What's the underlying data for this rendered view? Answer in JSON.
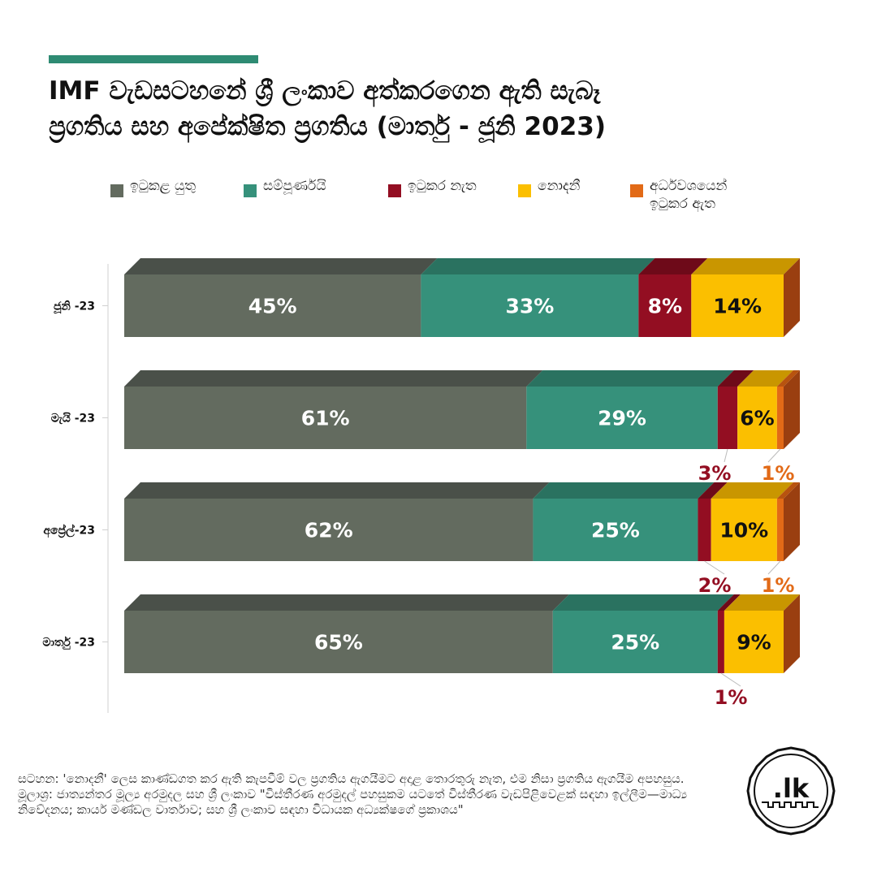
{
  "title_line1": "IMF වැඩසටහනේ ශ්‍රී ලංකාව අත්කරගෙන ඇති සැබෑ",
  "title_line2": "ප්‍රගතිය සහ අපේක්ෂිත ප්‍රගතිය (මාර්තු - ජූනි 2023)",
  "legend": [
    {
      "label": "ඉටුකළ යුතු",
      "color": "#636b5f"
    },
    {
      "label": "සම්පූර්ණයි",
      "color": "#36917b"
    },
    {
      "label": "ඉටුකර නැත",
      "color": "#930e22"
    },
    {
      "label": "නොදනී",
      "color": "#fbbf00"
    },
    {
      "label": "අර්ධවශයෙන් ඉටුකර ඇත",
      "color": "#e26a17"
    }
  ],
  "chart_data": {
    "type": "bar",
    "orientation": "horizontal",
    "stacked": true,
    "categories": [
      "ජූනි -23",
      "මැයි -23",
      "අප්‍රේල්-23",
      "මාර්තු -23"
    ],
    "series": [
      {
        "name": "ඉටුකළ යුතු",
        "values": [
          45,
          61,
          62,
          65
        ],
        "labels": [
          "45%",
          "61%",
          "62%",
          "65%"
        ]
      },
      {
        "name": "සම්පූර්ණයි",
        "values": [
          33,
          29,
          25,
          25
        ],
        "labels": [
          "33%",
          "29%",
          "25%",
          "25%"
        ]
      },
      {
        "name": "ඉටුකර නැත",
        "values": [
          8,
          3,
          2,
          1
        ],
        "labels": [
          "8%",
          "3%",
          "2%",
          "1%"
        ]
      },
      {
        "name": "නොදනී",
        "values": [
          14,
          6,
          10,
          9
        ],
        "labels": [
          "14%",
          "6%",
          "10%",
          "9%"
        ]
      },
      {
        "name": "අර්ධවශයෙන් ඉටුකර ඇත",
        "values": [
          0,
          1,
          1,
          0
        ],
        "labels": [
          "",
          "1%",
          "1%",
          ""
        ]
      }
    ],
    "xlim": [
      0,
      100
    ],
    "legend_position": "top"
  },
  "footnote": {
    "line1": "සටහන: 'නොදනී' ලෙස කාණ්ඩගත කර ඇති කැපවීම් වල ප්‍රගතිය ඇගයීමට අදාළ තොරතුරු නැත, එම නිසා ප්‍රගතිය ඇගයීම අපහසුය.",
    "line2": "මූලාශ්‍ර: ජාත්‍යන්තර මූල්‍ය අරමුදල සහ ශ්‍රී ලංකාව \"විස්තීරණ අරමුදල් පහසුකම යටතේ විස්තීරණ වැඩපිළිවෙළක් සඳහා ඉල්ලීම—මාධ්‍ය නිවේදනය; කාර්ය මණ්ඩල වාර්තාව; සහ ශ්‍රී ලංකාව සඳහා විධායක අධ්‍යක්ෂගේ ප්‍රකාශය\""
  },
  "logo_text": ".lk"
}
